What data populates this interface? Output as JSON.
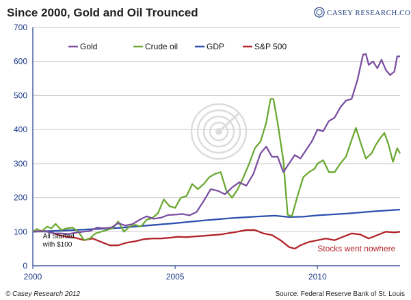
{
  "chart_data": {
    "type": "line",
    "title": "Since 2000, Gold and Oil Trounced",
    "brand": "CASEY RESEARCH.COM",
    "xlabel": "",
    "ylabel": "",
    "xlim": [
      2000,
      2012.9
    ],
    "ylim": [
      0,
      700
    ],
    "y_ticks": [
      0,
      100,
      200,
      300,
      400,
      500,
      600,
      700
    ],
    "x_ticks": [
      {
        "value": 2000,
        "label": "2000"
      },
      {
        "value": 2005,
        "label": "2005"
      },
      {
        "value": 2010,
        "label": "2010"
      }
    ],
    "grid": true,
    "legend_position": "top-left",
    "series": [
      {
        "name": "Gold",
        "color": "#7b4fa0",
        "points": [
          [
            2000.0,
            100
          ],
          [
            2000.25,
            101
          ],
          [
            2000.5,
            100
          ],
          [
            2000.75,
            95
          ],
          [
            2001.0,
            95
          ],
          [
            2001.25,
            93
          ],
          [
            2001.5,
            97
          ],
          [
            2001.75,
            100
          ],
          [
            2002.0,
            102
          ],
          [
            2002.25,
            112
          ],
          [
            2002.5,
            110
          ],
          [
            2002.75,
            112
          ],
          [
            2003.0,
            125
          ],
          [
            2003.25,
            118
          ],
          [
            2003.5,
            122
          ],
          [
            2003.75,
            135
          ],
          [
            2004.0,
            145
          ],
          [
            2004.25,
            138
          ],
          [
            2004.5,
            141
          ],
          [
            2004.75,
            149
          ],
          [
            2005.0,
            150
          ],
          [
            2005.25,
            152
          ],
          [
            2005.5,
            148
          ],
          [
            2005.75,
            158
          ],
          [
            2006.0,
            190
          ],
          [
            2006.25,
            225
          ],
          [
            2006.5,
            220
          ],
          [
            2006.75,
            210
          ],
          [
            2007.0,
            230
          ],
          [
            2007.25,
            245
          ],
          [
            2007.5,
            235
          ],
          [
            2007.75,
            270
          ],
          [
            2008.0,
            330
          ],
          [
            2008.2,
            350
          ],
          [
            2008.4,
            320
          ],
          [
            2008.6,
            320
          ],
          [
            2008.8,
            275
          ],
          [
            2009.0,
            300
          ],
          [
            2009.2,
            325
          ],
          [
            2009.4,
            315
          ],
          [
            2009.6,
            340
          ],
          [
            2009.8,
            365
          ],
          [
            2010.0,
            400
          ],
          [
            2010.2,
            395
          ],
          [
            2010.4,
            425
          ],
          [
            2010.6,
            435
          ],
          [
            2010.8,
            465
          ],
          [
            2011.0,
            485
          ],
          [
            2011.2,
            490
          ],
          [
            2011.4,
            545
          ],
          [
            2011.6,
            620
          ],
          [
            2011.7,
            622
          ],
          [
            2011.8,
            590
          ],
          [
            2011.95,
            600
          ],
          [
            2012.1,
            580
          ],
          [
            2012.25,
            605
          ],
          [
            2012.4,
            575
          ],
          [
            2012.55,
            560
          ],
          [
            2012.7,
            570
          ],
          [
            2012.8,
            615
          ],
          [
            2012.9,
            615
          ]
        ]
      },
      {
        "name": "Crude oil",
        "color": "#6aa832",
        "points": [
          [
            2000.0,
            100
          ],
          [
            2000.15,
            108
          ],
          [
            2000.3,
            100
          ],
          [
            2000.5,
            115
          ],
          [
            2000.65,
            110
          ],
          [
            2000.8,
            123
          ],
          [
            2001.0,
            105
          ],
          [
            2001.2,
            110
          ],
          [
            2001.4,
            112
          ],
          [
            2001.6,
            100
          ],
          [
            2001.8,
            75
          ],
          [
            2002.0,
            80
          ],
          [
            2002.2,
            95
          ],
          [
            2002.4,
            100
          ],
          [
            2002.6,
            105
          ],
          [
            2002.8,
            110
          ],
          [
            2003.0,
            130
          ],
          [
            2003.2,
            100
          ],
          [
            2003.4,
            115
          ],
          [
            2003.6,
            120
          ],
          [
            2003.8,
            115
          ],
          [
            2004.0,
            135
          ],
          [
            2004.2,
            140
          ],
          [
            2004.4,
            155
          ],
          [
            2004.6,
            195
          ],
          [
            2004.8,
            175
          ],
          [
            2005.0,
            170
          ],
          [
            2005.2,
            200
          ],
          [
            2005.4,
            205
          ],
          [
            2005.6,
            240
          ],
          [
            2005.8,
            225
          ],
          [
            2006.0,
            240
          ],
          [
            2006.2,
            260
          ],
          [
            2006.4,
            270
          ],
          [
            2006.6,
            275
          ],
          [
            2006.8,
            220
          ],
          [
            2007.0,
            200
          ],
          [
            2007.2,
            225
          ],
          [
            2007.4,
            260
          ],
          [
            2007.6,
            300
          ],
          [
            2007.8,
            345
          ],
          [
            2008.0,
            365
          ],
          [
            2008.2,
            420
          ],
          [
            2008.35,
            490
          ],
          [
            2008.45,
            490
          ],
          [
            2008.6,
            420
          ],
          [
            2008.8,
            310
          ],
          [
            2008.95,
            150
          ],
          [
            2009.1,
            145
          ],
          [
            2009.3,
            205
          ],
          [
            2009.5,
            260
          ],
          [
            2009.7,
            275
          ],
          [
            2009.9,
            285
          ],
          [
            2010.0,
            300
          ],
          [
            2010.2,
            310
          ],
          [
            2010.4,
            275
          ],
          [
            2010.6,
            275
          ],
          [
            2010.8,
            300
          ],
          [
            2011.0,
            320
          ],
          [
            2011.2,
            370
          ],
          [
            2011.35,
            405
          ],
          [
            2011.5,
            365
          ],
          [
            2011.7,
            315
          ],
          [
            2011.9,
            330
          ],
          [
            2012.05,
            355
          ],
          [
            2012.2,
            375
          ],
          [
            2012.35,
            390
          ],
          [
            2012.5,
            355
          ],
          [
            2012.65,
            305
          ],
          [
            2012.8,
            345
          ],
          [
            2012.9,
            330
          ]
        ]
      },
      {
        "name": "GDP",
        "color": "#2b4fae",
        "points": [
          [
            2000.0,
            100
          ],
          [
            2001.0,
            103
          ],
          [
            2002.0,
            107
          ],
          [
            2003.0,
            111
          ],
          [
            2004.0,
            118
          ],
          [
            2005.0,
            125
          ],
          [
            2006.0,
            133
          ],
          [
            2007.0,
            140
          ],
          [
            2008.0,
            145
          ],
          [
            2008.5,
            147
          ],
          [
            2009.0,
            143
          ],
          [
            2009.5,
            144
          ],
          [
            2010.0,
            148
          ],
          [
            2011.0,
            153
          ],
          [
            2012.0,
            160
          ],
          [
            2012.9,
            165
          ]
        ]
      },
      {
        "name": "S&P 500",
        "color": "#b3242b",
        "points": [
          [
            2000.0,
            100
          ],
          [
            2000.3,
            103
          ],
          [
            2000.6,
            100
          ],
          [
            2000.9,
            90
          ],
          [
            2001.2,
            85
          ],
          [
            2001.5,
            82
          ],
          [
            2001.8,
            75
          ],
          [
            2002.1,
            80
          ],
          [
            2002.4,
            70
          ],
          [
            2002.7,
            60
          ],
          [
            2003.0,
            60
          ],
          [
            2003.3,
            68
          ],
          [
            2003.6,
            72
          ],
          [
            2003.9,
            78
          ],
          [
            2004.2,
            80
          ],
          [
            2004.5,
            80
          ],
          [
            2004.8,
            82
          ],
          [
            2005.1,
            85
          ],
          [
            2005.4,
            84
          ],
          [
            2005.7,
            86
          ],
          [
            2006.0,
            88
          ],
          [
            2006.3,
            90
          ],
          [
            2006.6,
            92
          ],
          [
            2006.9,
            96
          ],
          [
            2007.2,
            100
          ],
          [
            2007.5,
            105
          ],
          [
            2007.8,
            105
          ],
          [
            2008.1,
            95
          ],
          [
            2008.4,
            90
          ],
          [
            2008.7,
            75
          ],
          [
            2009.0,
            55
          ],
          [
            2009.2,
            50
          ],
          [
            2009.4,
            60
          ],
          [
            2009.7,
            70
          ],
          [
            2010.0,
            75
          ],
          [
            2010.3,
            80
          ],
          [
            2010.6,
            75
          ],
          [
            2010.9,
            85
          ],
          [
            2011.2,
            95
          ],
          [
            2011.5,
            92
          ],
          [
            2011.8,
            80
          ],
          [
            2012.1,
            90
          ],
          [
            2012.4,
            100
          ],
          [
            2012.7,
            98
          ],
          [
            2012.9,
            100
          ]
        ]
      }
    ],
    "annotations": [
      {
        "id": "start",
        "lines": [
          "All Started",
          "with $100"
        ],
        "x": 2000.35,
        "y": 80
      },
      {
        "id": "stocks",
        "lines": [
          "Stocks went nowhere"
        ],
        "x": 2010.0,
        "y": 42
      }
    ]
  },
  "footer": {
    "copyright": "© Casey Research 2012",
    "source": "Source:  Federal Reserve Bank of St. Louis"
  },
  "colors": {
    "axis": "#1e3a8a",
    "grid": "#c9c9c9",
    "watermark": "#d7d7d7"
  }
}
